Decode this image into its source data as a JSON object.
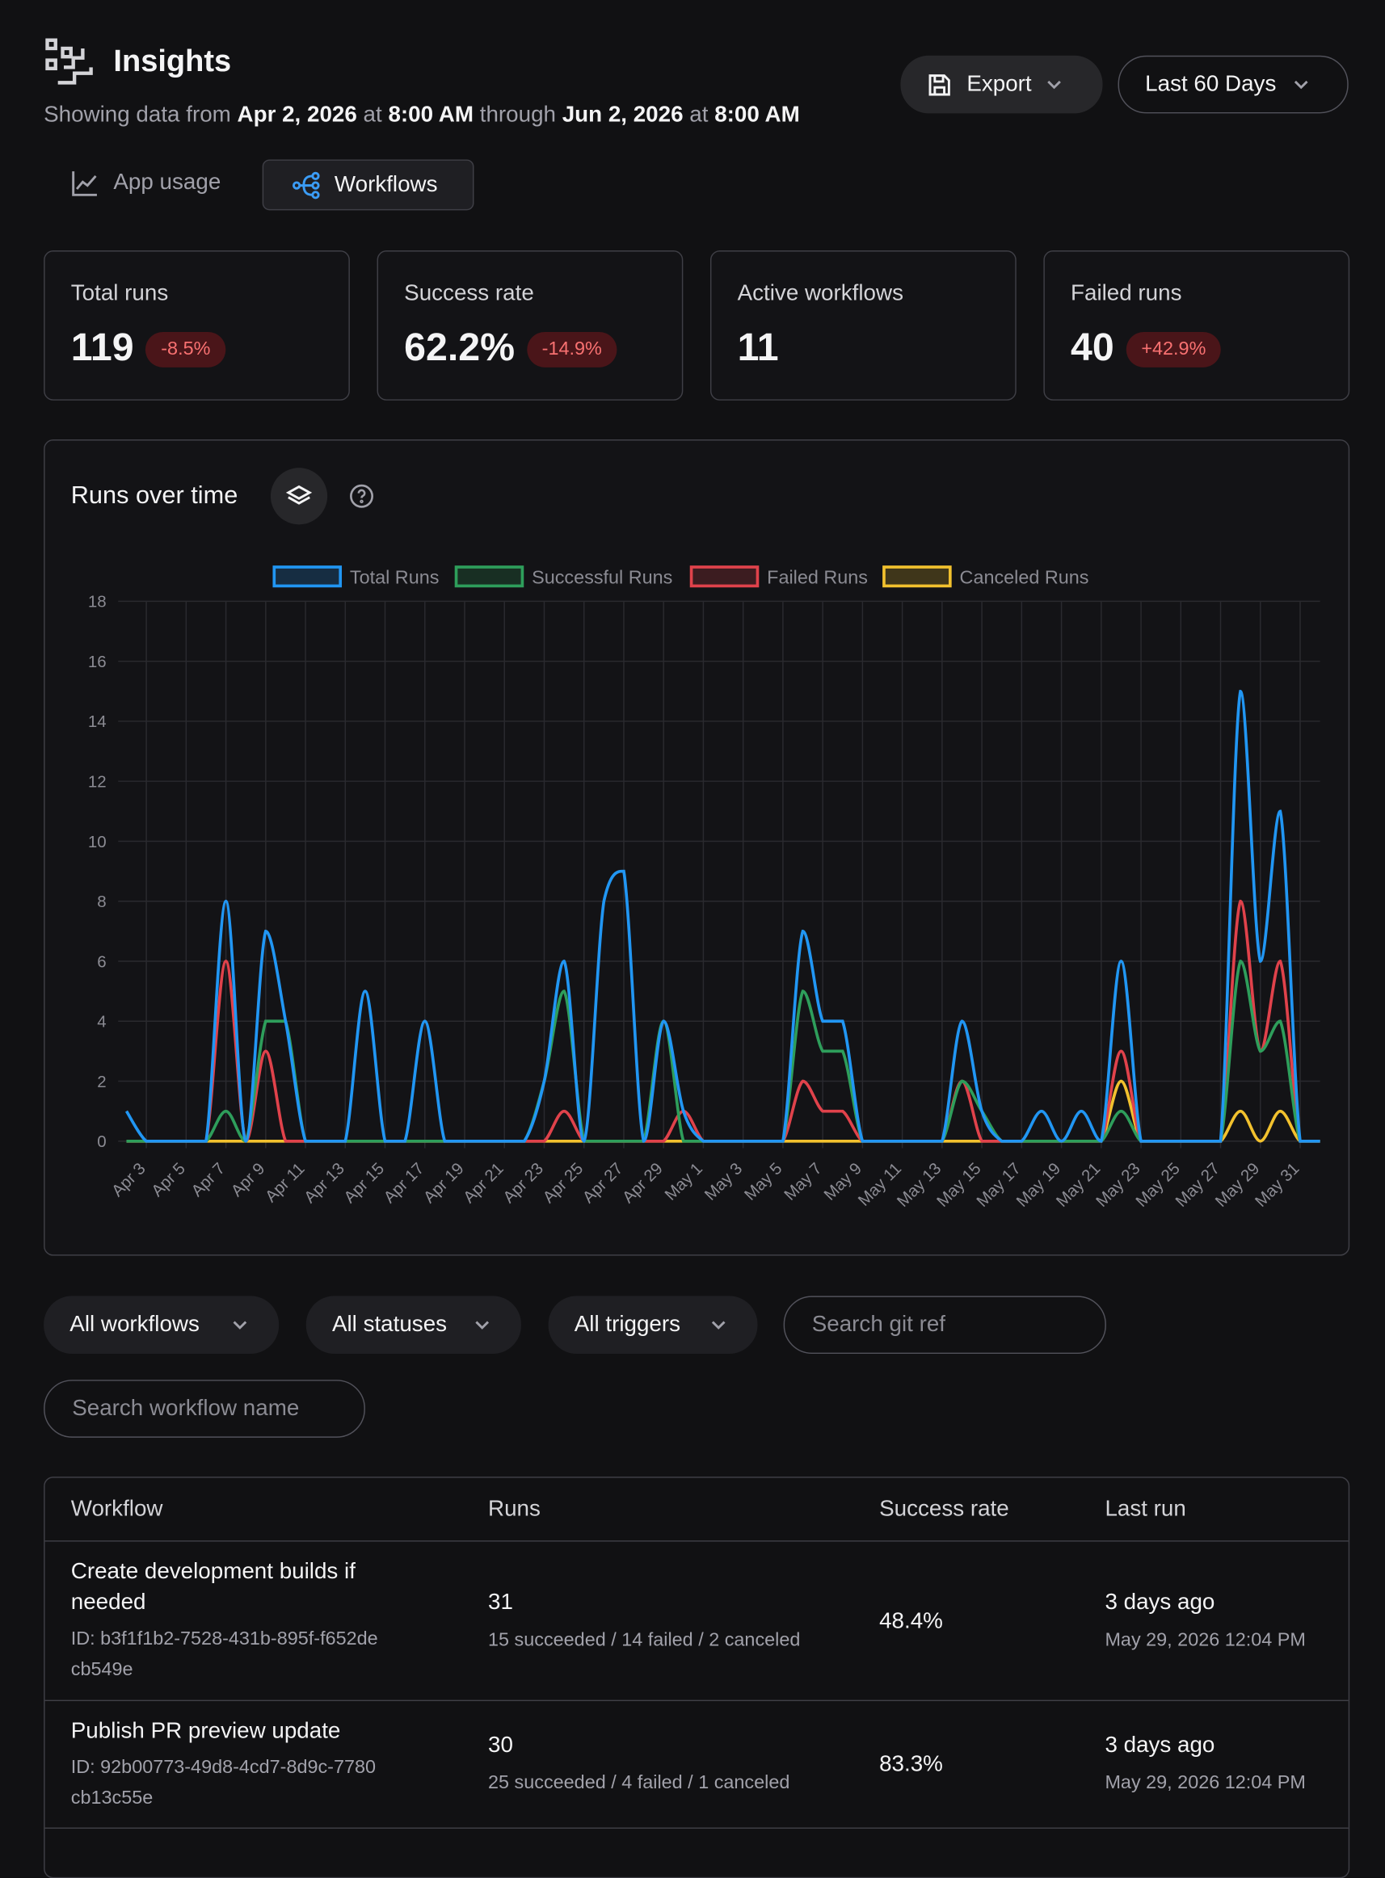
{
  "header": {
    "title": "Insights",
    "subtitle": [
      "Showing data from",
      "Apr 2, 2026",
      "at",
      "8:00 AM",
      "through",
      "Jun 2, 2026",
      "at",
      "8:00 AM"
    ],
    "export": "Export",
    "range": "Last 60 Days"
  },
  "tabs": [
    "App usage",
    "Workflows"
  ],
  "stats": [
    {
      "label": "Total runs",
      "value": "119",
      "delta": "-8.5%"
    },
    {
      "label": "Success rate",
      "value": "62.2%",
      "delta": "-14.9%"
    },
    {
      "label": "Active workflows",
      "value": "11"
    },
    {
      "label": "Failed runs",
      "value": "40",
      "delta": "+42.9%"
    }
  ],
  "chart_data": {
    "type": "line",
    "title": "Runs over time",
    "categories": [
      null,
      "Apr 3",
      null,
      "Apr 5",
      null,
      "Apr 7",
      null,
      "Apr 9",
      null,
      "Apr 11",
      null,
      "Apr 13",
      null,
      "Apr 15",
      null,
      "Apr 17",
      null,
      "Apr 19",
      null,
      "Apr 21",
      null,
      "Apr 23",
      null,
      "Apr 25",
      null,
      "Apr 27",
      null,
      "Apr 29",
      null,
      "May 1",
      null,
      "May 3",
      null,
      "May 5",
      null,
      "May 7",
      null,
      "May 9",
      null,
      "May 11",
      null,
      "May 13",
      null,
      "May 15",
      null,
      "May 17",
      null,
      "May 19",
      null,
      "May 21",
      null,
      "May 23",
      null,
      "May 25",
      null,
      "May 27",
      null,
      "May 29",
      null,
      "May 31",
      null
    ],
    "series": [
      {
        "name": "Total Runs",
        "color": "#2196f3",
        "values": [
          1,
          0,
          0,
          0,
          0,
          8,
          0,
          7,
          4,
          0,
          0,
          0,
          5,
          0,
          0,
          4,
          0,
          0,
          0,
          0,
          0,
          2,
          6,
          0,
          8,
          9,
          0,
          4,
          1,
          0,
          0,
          0,
          0,
          0,
          7,
          4,
          4,
          0,
          0,
          0,
          0,
          0,
          4,
          1,
          0,
          0,
          1,
          0,
          1,
          0,
          6,
          0,
          0,
          0,
          0,
          0,
          15,
          6,
          11,
          0,
          0
        ]
      },
      {
        "name": "Successful Runs",
        "color": "#2e9e5b",
        "values": [
          0,
          0,
          0,
          0,
          0,
          1,
          0,
          4,
          4,
          0,
          0,
          0,
          0,
          0,
          0,
          0,
          0,
          0,
          0,
          0,
          0,
          2,
          5,
          0,
          0,
          0,
          0,
          4,
          0,
          0,
          0,
          0,
          0,
          0,
          5,
          3,
          3,
          0,
          0,
          0,
          0,
          0,
          2,
          1,
          0,
          0,
          0,
          0,
          0,
          0,
          1,
          0,
          0,
          0,
          0,
          0,
          6,
          3,
          4,
          0,
          0
        ]
      },
      {
        "name": "Failed Runs",
        "color": "#e0424b",
        "values": [
          0,
          0,
          0,
          0,
          0,
          6,
          0,
          3,
          0,
          0,
          0,
          0,
          0,
          0,
          0,
          0,
          0,
          0,
          0,
          0,
          0,
          0,
          1,
          0,
          0,
          0,
          0,
          0,
          1,
          0,
          0,
          0,
          0,
          0,
          2,
          1,
          1,
          0,
          0,
          0,
          0,
          0,
          2,
          0,
          0,
          0,
          0,
          0,
          0,
          0,
          3,
          0,
          0,
          0,
          0,
          0,
          8,
          3,
          6,
          0,
          0
        ]
      },
      {
        "name": "Canceled Runs",
        "color": "#f2c12e",
        "values": [
          0,
          0,
          0,
          0,
          0,
          0,
          0,
          0,
          0,
          0,
          0,
          0,
          0,
          0,
          0,
          0,
          0,
          0,
          0,
          0,
          0,
          0,
          0,
          0,
          0,
          0,
          0,
          0,
          0,
          0,
          0,
          0,
          0,
          0,
          0,
          0,
          0,
          0,
          0,
          0,
          0,
          0,
          0,
          0,
          0,
          0,
          0,
          0,
          0,
          0,
          2,
          0,
          0,
          0,
          0,
          0,
          1,
          0,
          1,
          0,
          0
        ]
      }
    ],
    "ylim": [
      0,
      18
    ],
    "yticks": [
      0,
      2,
      4,
      6,
      8,
      10,
      12,
      14,
      16,
      18
    ],
    "grid": true,
    "legend": "top"
  },
  "filters": [
    "All workflows",
    "All statuses",
    "All triggers"
  ],
  "searches": [
    "Search git ref",
    "Search workflow name"
  ],
  "table": {
    "columns": [
      "Workflow",
      "Runs",
      "Success rate",
      "Last run"
    ],
    "rows": [
      {
        "name": "Create development builds if needed",
        "id": "ID: b3f1f1b2-7528-431b-895f-f652decb549e",
        "runs": "31",
        "breakdown": "15 succeeded / 14 failed / 2 canceled",
        "rate": "48.4%",
        "last": "3 days ago",
        "date": "May 29, 2026 12:04 PM"
      },
      {
        "name": "Publish PR preview update",
        "id": "ID: 92b00773-49d8-4cd7-8d9c-7780cb13c55e",
        "runs": "30",
        "breakdown": "25 succeeded / 4 failed / 1 canceled",
        "rate": "83.3%",
        "last": "3 days ago",
        "date": "May 29, 2026 12:04 PM"
      }
    ]
  }
}
